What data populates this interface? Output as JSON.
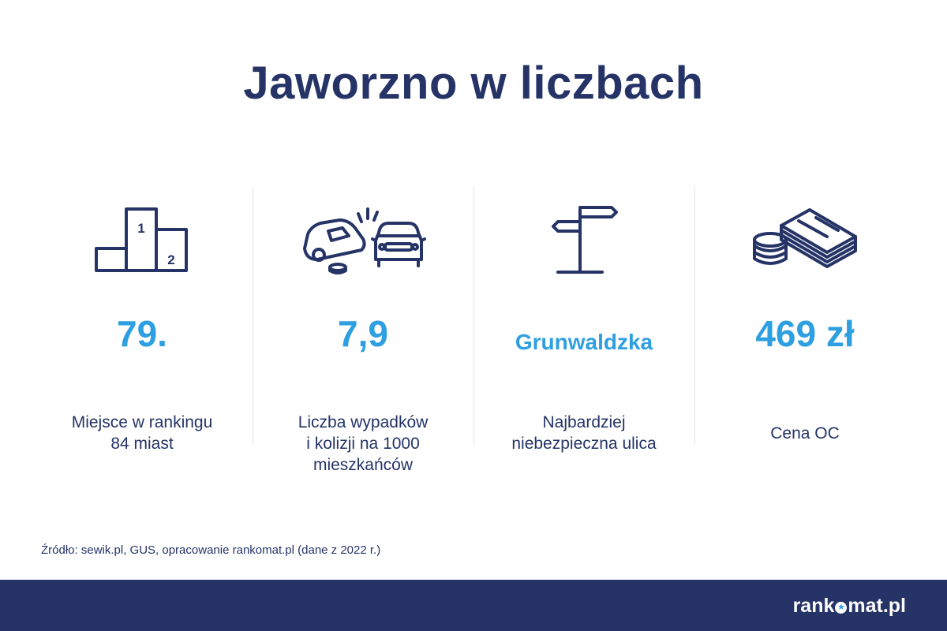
{
  "title": "Jaworzno w liczbach",
  "columns": [
    {
      "icon": "podium-icon",
      "value": "79.",
      "podium_first": "1",
      "podium_second": "2",
      "desc_lines": [
        "Miejsce w rankingu",
        "84 miast"
      ]
    },
    {
      "icon": "car-crash-icon",
      "value": "7,9",
      "desc_lines": [
        "Liczba wypadków",
        "i kolizji na 1000",
        "mieszkańców"
      ]
    },
    {
      "icon": "signpost-icon",
      "value": "Grunwaldzka",
      "desc_lines": [
        "Najbardziej",
        "niebezpieczna ulica"
      ]
    },
    {
      "icon": "money-icon",
      "value": "469 zł",
      "desc_lines": [
        "Cena OC"
      ]
    }
  ],
  "source": "Źródło: sewik.pl, GUS, opracowanie rankomat.pl (dane z 2022 r.)",
  "logo": {
    "part1": "rank",
    "part2": "mat.pl"
  },
  "colors": {
    "navy": "#253366",
    "accent": "#2e9fe0",
    "divider": "#e4e6ec"
  }
}
